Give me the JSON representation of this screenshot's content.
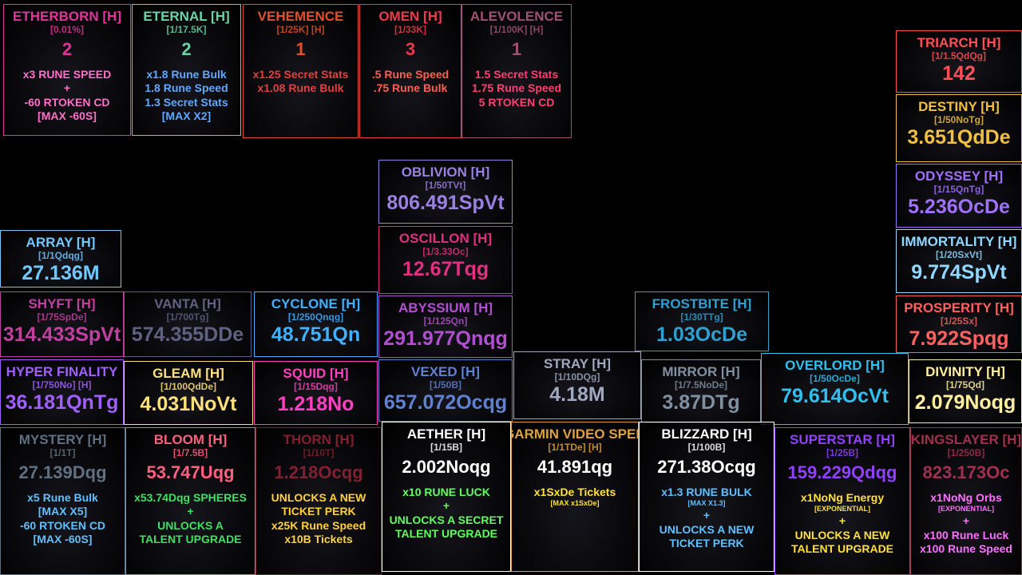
{
  "cards": [
    {
      "name": "ETHERBORN [H]",
      "chance": "[0.01%]",
      "count": "2",
      "color": "#e0359a",
      "lines": [
        "x3 RUNE SPEED",
        "+",
        "-60 RTOKEN CD",
        "[MAX -60S]"
      ]
    },
    {
      "name": "ETERNAL [H]",
      "chance": "[1/17.5K]",
      "count": "2",
      "color": "#6ad3a8",
      "lines": [
        "x1.8 Rune Bulk",
        "1.8 Rune Speed",
        "1.3 Secret Stats",
        "[MAX X2]"
      ]
    },
    {
      "name": "VEHEMENCE",
      "chance": "[1/25K] [H]",
      "count": "1",
      "color": "#e0502a",
      "lines": [
        "x1.25 Secret Stats",
        "x1.08 Rune Bulk"
      ]
    },
    {
      "name": "OMEN [H]",
      "chance": "[1/33K]",
      "count": "3",
      "color": "#ee3a4a",
      "lines": [
        ".5 Rune Speed",
        ".75 Rune Bulk"
      ]
    },
    {
      "name": "ALEVOLENCE",
      "chance": "[1/100K] [H]",
      "count": "1",
      "color": "#a05070",
      "lines": [
        "1.5 Secret Stats",
        "1.75 Rune Speed",
        "5 RTOKEN CD"
      ]
    },
    {
      "name": "TRIARCH [H]",
      "chance": "[1/1.5QdQg]",
      "count": "142",
      "color": "#ff5058",
      "lines": []
    },
    {
      "name": "DESTINY [H]",
      "chance": "[1/50NoTg]",
      "count": "3.651QdDe",
      "color": "#f0c040",
      "lines": []
    },
    {
      "name": "ODYSSEY [H]",
      "chance": "[1/15QnTg]",
      "count": "5.236OcDe",
      "color": "#a070ff",
      "lines": []
    },
    {
      "name": "IMMORTALITY [H]",
      "chance": "[1/20SxVt]",
      "count": "9.774SpVt",
      "color": "#90d8ff",
      "lines": []
    },
    {
      "name": "PROSPERITY [H]",
      "chance": "[1/25Sx]",
      "count": "7.922Spqg",
      "color": "#ff6060",
      "lines": []
    },
    {
      "name": "OBLIVION [H]",
      "chance": "[1/50TVt]",
      "count": "806.491SpVt",
      "color": "#9a80e0",
      "lines": []
    },
    {
      "name": "OSCILLON [H]",
      "chance": "[1/3.33Oc]",
      "count": "12.67Tqg",
      "color": "#e03080",
      "lines": []
    },
    {
      "name": "ABYSSIUM [H]",
      "chance": "[1/125Qn]",
      "count": "291.977Qnqg",
      "color": "#b050d0",
      "lines": []
    },
    {
      "name": "ARRAY [H]",
      "chance": "[1/1Qdqg]",
      "count": "27.136M",
      "color": "#70c8ff",
      "lines": []
    },
    {
      "name": "SHYFT [H]",
      "chance": "[1/75SpDe]",
      "count": "314.433SpVt",
      "color": "#c040a0",
      "lines": []
    },
    {
      "name": "VANTA [H]",
      "chance": "[1/700Tg]",
      "count": "574.355DDe",
      "color": "#606080",
      "lines": []
    },
    {
      "name": "CYCLONE [H]",
      "chance": "[1/250Qnqg]",
      "count": "48.751Qn",
      "color": "#40b0ff",
      "lines": []
    },
    {
      "name": "FROSTBITE [H]",
      "chance": "[1/30TTg]",
      "count": "1.03OcDe",
      "color": "#30a0d0",
      "lines": []
    },
    {
      "name": "HYPER FINALITY",
      "chance": "[1/750No] [H]",
      "count": "36.181QnTg",
      "color": "#a060ff",
      "lines": []
    },
    {
      "name": "GLEAM [H]",
      "chance": "[1/100QdDe]",
      "count": "4.031NoVt",
      "color": "#ffe080",
      "lines": []
    },
    {
      "name": "SQUID [H]",
      "chance": "[1/15Dqg]",
      "count": "1.218No",
      "color": "#ff40c0",
      "lines": []
    },
    {
      "name": "VEXED [H]",
      "chance": "[1/50B]",
      "count": "657.072Ocqg",
      "color": "#6080d0",
      "lines": []
    },
    {
      "name": "STRAY [H]",
      "chance": "[1/10DQg]",
      "count": "4.18M",
      "color": "#a0a8c0",
      "lines": []
    },
    {
      "name": "MIRROR [H]",
      "chance": "[1/7.5NoDe]",
      "count": "3.87DTg",
      "color": "#8090a0",
      "lines": []
    },
    {
      "name": "OVERLORD [H]",
      "chance": "[1/50OcDe]",
      "count": "79.614OcVt",
      "color": "#30c0f0",
      "lines": []
    },
    {
      "name": "DIVINITY [H]",
      "chance": "[1/75Qd]",
      "count": "2.079Noqg",
      "color": "#fff0a0",
      "lines": []
    },
    {
      "name": "MYSTERY [H]",
      "chance": "[1/1T]",
      "count": "27.139Dqg",
      "color": "#607080",
      "lines": [
        "x5 Rune Bulk",
        "[MAX X5]",
        "-60 RTOKEN CD",
        "[MAX -60S]"
      ]
    },
    {
      "name": "BLOOM [H]",
      "chance": "[1/7.5B]",
      "count": "53.747Uqg",
      "color": "#ff6080",
      "lines": [
        "x53.74Dqg SPHERES",
        "+",
        "UNLOCKS A",
        "TALENT UPGRADE"
      ]
    },
    {
      "name": "THORN [H]",
      "chance": "[1/10T]",
      "count": "1.218Ocqg",
      "color": "#802030",
      "lines": [
        "UNLOCKS A NEW",
        "TICKET PERK",
        "x25K Rune Speed",
        "x10B Tickets"
      ]
    },
    {
      "name": "AETHER [H]",
      "chance": "[1/15B]",
      "count": "2.002Noqg",
      "color": "#ffffff",
      "lines": [
        "x10 RUNE LUCK",
        "+",
        "UNLOCKS A SECRET",
        "TALENT UPGRADE"
      ]
    },
    {
      "name": "OKEY GARMIN VIDEO SPEICHERN",
      "chance": "[1/1TDe] [H]",
      "count": "41.891qg",
      "color": "#e0a040",
      "lines": [
        "x1SxDe Tickets",
        "[MAX x1SxDe]"
      ]
    },
    {
      "name": "BLIZZARD [H]",
      "chance": "[1/100B]",
      "count": "271.38Ocqg",
      "color": "#ffffff",
      "lines": [
        "x1.3 RUNE BULK",
        "[MAX X1.3]",
        "+",
        "UNLOCKS A NEW",
        "TICKET PERK"
      ]
    },
    {
      "name": "SUPERSTAR [H]",
      "chance": "[1/25B]",
      "count": "159.229Qdqg",
      "color": "#9040ff",
      "lines": [
        "x1NoNg Energy",
        "[EXPONENTIAL]",
        "+",
        "UNLOCKS A NEW",
        "TALENT UPGRADE"
      ]
    },
    {
      "name": "KINGSLAYER [H]",
      "chance": "[1/250B]",
      "count": "823.173Oc",
      "color": "#a03050",
      "lines": [
        "x1NoNg Orbs",
        "[EXPONENTIAL]",
        "+",
        "x100 Rune Luck",
        "x100 Rune Speed"
      ]
    }
  ]
}
